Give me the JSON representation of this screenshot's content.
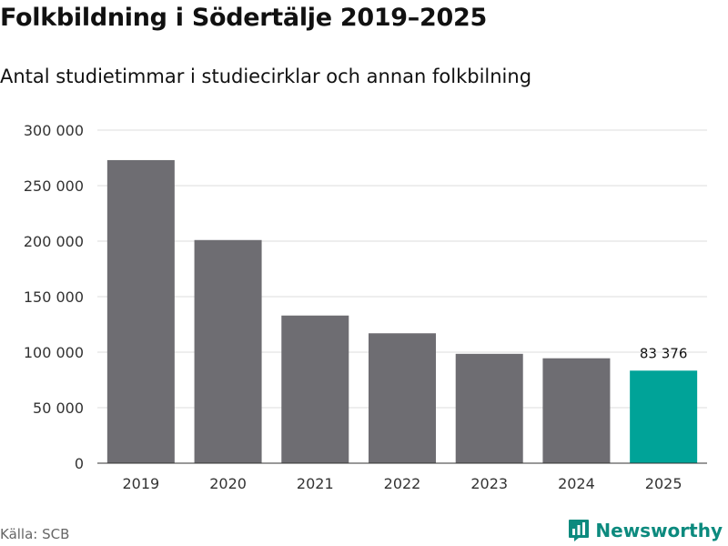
{
  "title": "Folkbildning i Södertälje 2019–2025",
  "subtitle": "Antal studietimmar i studiecirklar och annan folkbilning",
  "source": "Källa: SCB",
  "brand": {
    "name": "Newsworthy",
    "icon": "newsworthy-logo-icon",
    "color": "#0c8a7e"
  },
  "colors": {
    "bar_default": "#6e6d72",
    "bar_highlight": "#00a398",
    "grid": "#dddddd",
    "axis": "#333333"
  },
  "chart_data": {
    "type": "bar",
    "title": "Folkbildning i Södertälje 2019–2025",
    "subtitle": "Antal studietimmar i studiecirklar och annan folkbilning",
    "xlabel": "",
    "ylabel": "",
    "categories": [
      "2019",
      "2020",
      "2021",
      "2022",
      "2023",
      "2024",
      "2025"
    ],
    "values": [
      273000,
      201000,
      133000,
      117000,
      98500,
      94500,
      83376
    ],
    "highlight_index": 6,
    "ylim": [
      0,
      300000
    ],
    "yticks": [
      0,
      50000,
      100000,
      150000,
      200000,
      250000,
      300000
    ],
    "ytick_labels": [
      "0",
      "50 000",
      "100 000",
      "150 000",
      "200 000",
      "250 000",
      "300 000"
    ],
    "annotations": [
      {
        "category": "2025",
        "value": 83376,
        "text": "83 376"
      }
    ],
    "grid": true
  }
}
